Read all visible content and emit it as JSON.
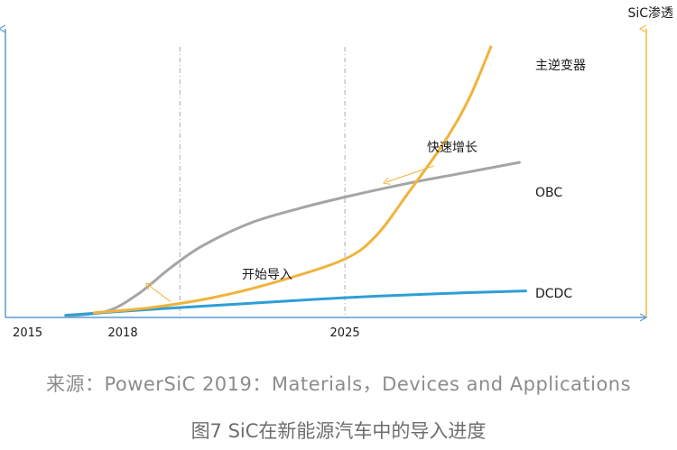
{
  "source": "来源：PowerSiC 2019：Materials，Devices and Applications",
  "caption": "图7 SiC在新能源汽车中的导入进度",
  "colors": {
    "axis_left": "#5b9bd5",
    "axis_right": "#f5b942",
    "gridline": "#a7a7cc",
    "main_inverter": "#f0b33b",
    "obc": "#a5a5a5",
    "dcdc": "#2e9fd6"
  },
  "chart_data": {
    "type": "line",
    "y_axis_right_label": "SiC渗透",
    "x_ticks": [
      {
        "label": "2015",
        "x": 2015
      },
      {
        "label": "2018",
        "x": 2018
      },
      {
        "label": "2025",
        "x": 2025
      }
    ],
    "xlim": [
      2014.3,
      2034.5
    ],
    "ylim": [
      0,
      100
    ],
    "vlines": [
      2019.8,
      2025
    ],
    "series": [
      {
        "name": "主逆变器",
        "color_key": "main_inverter",
        "x": [
          2017.1,
          2019,
          2021,
          2023,
          2025,
          2026,
          2027,
          2028.1,
          2028.9,
          2029.6,
          2030.5
        ],
        "y": [
          1.7,
          3.8,
          7.7,
          13.7,
          21.6,
          30.4,
          46.1,
          64.2,
          80.6,
          100,
          100
        ]
      },
      {
        "name": "OBC",
        "color_key": "obc",
        "x": [
          2016.2,
          2017.5,
          2018.5,
          2019.5,
          2020.5,
          2022,
          2023.5,
          2025,
          2027,
          2028.5,
          2030.5
        ],
        "y": [
          0.5,
          2.3,
          8.8,
          18.3,
          26.4,
          34.8,
          40.1,
          44.5,
          49.6,
          52.9,
          57.3
        ]
      },
      {
        "name": "DCDC",
        "color_key": "dcdc",
        "x": [
          2016.2,
          2018,
          2020,
          2022,
          2025,
          2028,
          2030.7
        ],
        "y": [
          0.8,
          2.3,
          3.8,
          5.2,
          7.3,
          8.8,
          9.8
        ]
      }
    ],
    "annotations": [
      {
        "text": "开始导入",
        "arrow_from": [
          2019.5,
          5.9
        ],
        "arrow_to": [
          2018.8,
          12.0
        ]
      },
      {
        "text": "快速增长",
        "arrow_from": [
          2027.8,
          56.0
        ],
        "arrow_to": [
          2026.3,
          50.0
        ]
      }
    ],
    "grid": false,
    "legend": "none"
  }
}
